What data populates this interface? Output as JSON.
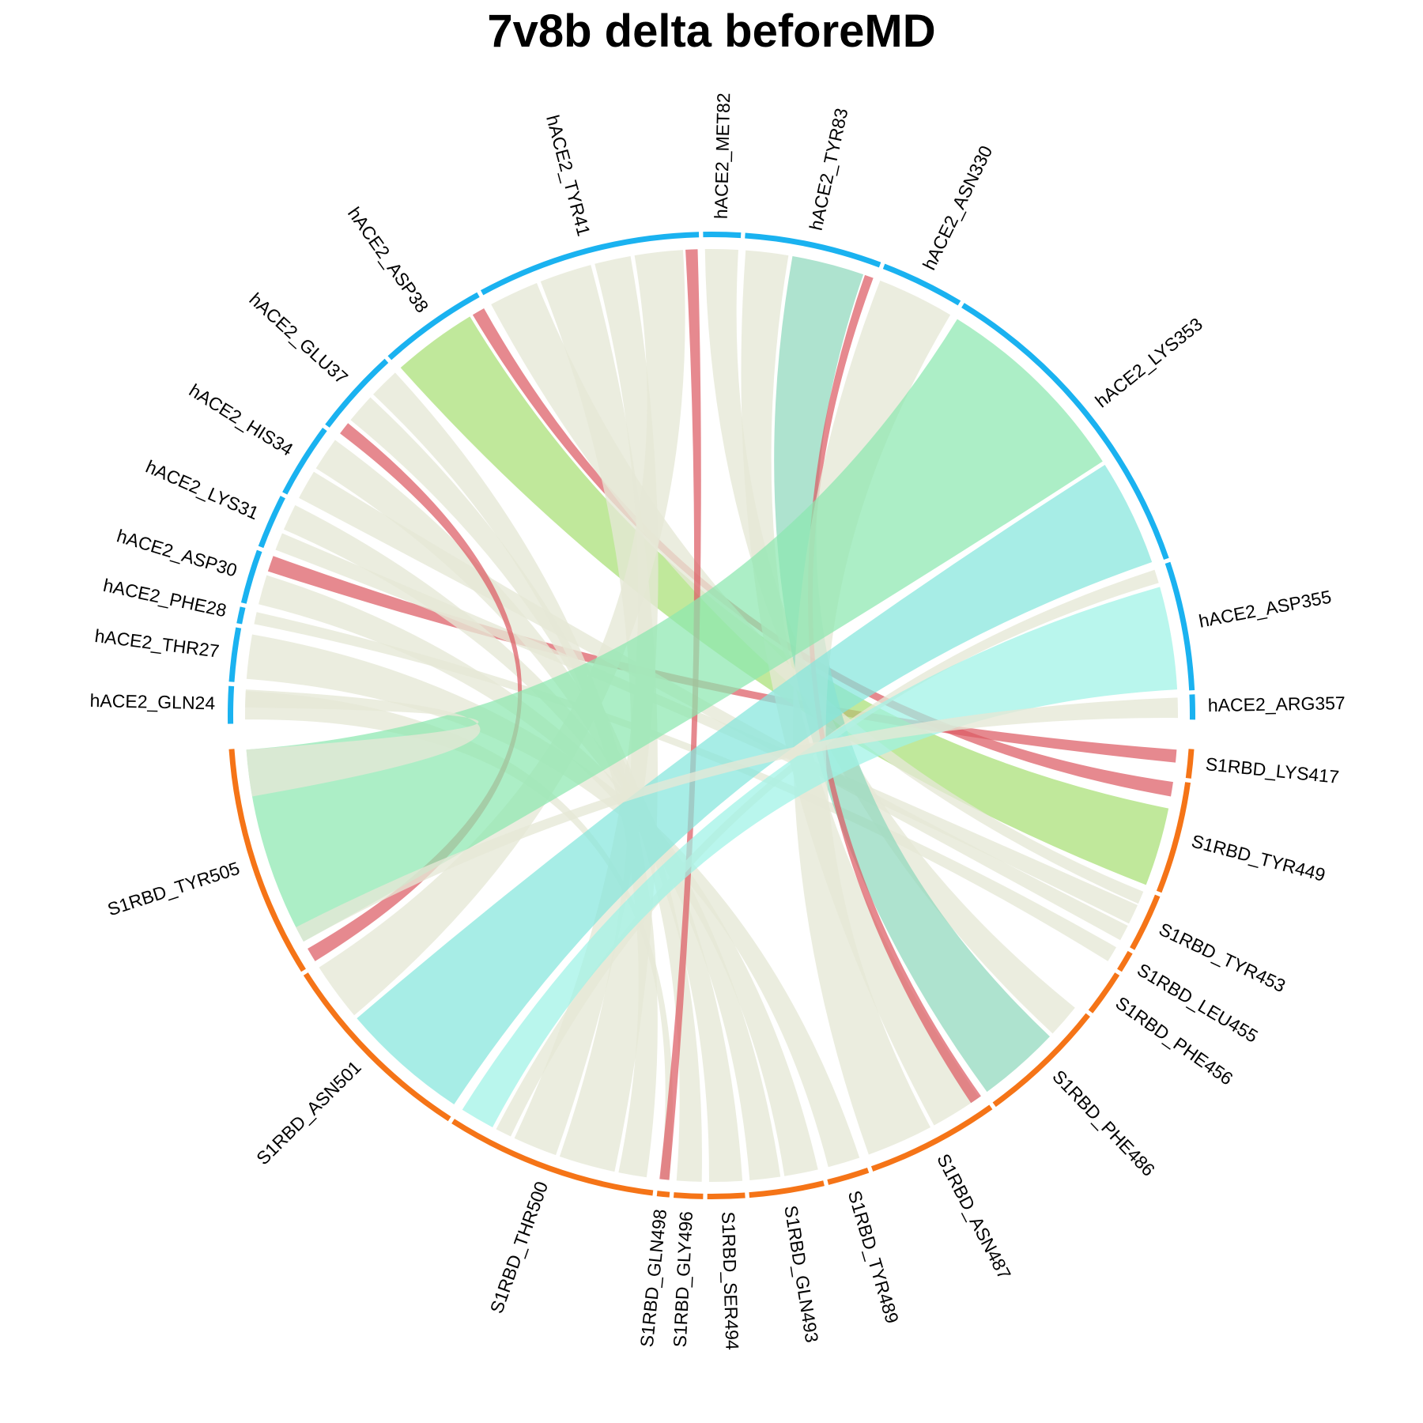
{
  "title": "7v8b delta beforeMD",
  "chart_data": {
    "type": "chord",
    "title": "7v8b delta beforeMD",
    "groups": [
      {
        "name": "hACE2",
        "color": "#1ab2f0"
      },
      {
        "name": "S1RBD",
        "color": "#f57417"
      }
    ],
    "sectors": [
      {
        "label": "hACE2_GLN24",
        "group": "hACE2",
        "start": 269.0,
        "end": 273.5
      },
      {
        "label": "hACE2_THR27",
        "group": "hACE2",
        "start": 274.0,
        "end": 280.5
      },
      {
        "label": "hACE2_PHE28",
        "group": "hACE2",
        "start": 281.0,
        "end": 283.0
      },
      {
        "label": "hACE2_ASP30",
        "group": "hACE2",
        "start": 283.5,
        "end": 290.0
      },
      {
        "label": "hACE2_LYS31",
        "group": "hACE2",
        "start": 290.5,
        "end": 297.0
      },
      {
        "label": "hACE2_HIS34",
        "group": "hACE2",
        "start": 297.5,
        "end": 306.5
      },
      {
        "label": "hACE2_GLU37",
        "group": "hACE2",
        "start": 307.0,
        "end": 317.5
      },
      {
        "label": "hACE2_ASP38",
        "group": "hACE2",
        "start": 318.0,
        "end": 331.0
      },
      {
        "label": "hACE2_TYR41",
        "group": "hACE2",
        "start": 331.5,
        "end": 358.5
      },
      {
        "label": "hACE2_MET82",
        "group": "hACE2",
        "start": 359.0,
        "end": 363.5
      },
      {
        "label": "hACE2_TYR83",
        "group": "hACE2",
        "start": 364.0,
        "end": 380.5
      },
      {
        "label": "hACE2_ASN330",
        "group": "hACE2",
        "start": 381.0,
        "end": 391.0
      },
      {
        "label": "hACE2_LYS353",
        "group": "hACE2",
        "start": 391.5,
        "end": 431.0
      },
      {
        "label": "hACE2_ASP355",
        "group": "hACE2",
        "start": 431.5,
        "end": 447.0
      },
      {
        "label": "hACE2_ARG357",
        "group": "hACE2",
        "start": 447.5,
        "end": 450.5
      },
      {
        "label": "S1RBD_LYS417",
        "group": "S1RBD",
        "start": 94.0,
        "end": 97.5
      },
      {
        "label": "S1RBD_TYR449",
        "group": "S1RBD",
        "start": 98.0,
        "end": 111.5
      },
      {
        "label": "S1RBD_TYR453",
        "group": "S1RBD",
        "start": 112.0,
        "end": 119.0
      },
      {
        "label": "S1RBD_LEU455",
        "group": "S1RBD",
        "start": 119.5,
        "end": 122.0
      },
      {
        "label": "S1RBD_PHE456",
        "group": "S1RBD",
        "start": 122.5,
        "end": 128.0
      },
      {
        "label": "S1RBD_PHE486",
        "group": "S1RBD",
        "start": 128.5,
        "end": 144.0
      },
      {
        "label": "S1RBD_ASN487",
        "group": "S1RBD",
        "start": 144.5,
        "end": 160.5
      },
      {
        "label": "S1RBD_TYR489",
        "group": "S1RBD",
        "start": 161.0,
        "end": 166.0
      },
      {
        "label": "S1RBD_GLN493",
        "group": "S1RBD",
        "start": 166.5,
        "end": 175.5
      },
      {
        "label": "S1RBD_SER494",
        "group": "S1RBD",
        "start": 176.0,
        "end": 180.5
      },
      {
        "label": "S1RBD_GLY496",
        "group": "S1RBD",
        "start": 181.0,
        "end": 184.5
      },
      {
        "label": "S1RBD_GLN498",
        "group": "S1RBD",
        "start": 185.0,
        "end": 186.5
      },
      {
        "label": "S1RBD_THR500",
        "group": "S1RBD",
        "start": 187.0,
        "end": 212.5
      },
      {
        "label": "S1RBD_ASN501",
        "group": "S1RBD",
        "start": 213.0,
        "end": 237.5
      },
      {
        "label": "S1RBD_TYR505",
        "group": "S1RBD",
        "start": 238.0,
        "end": 266.0
      }
    ],
    "links": [
      {
        "from": "hACE2_GLN24",
        "to": "S1RBD_GLN498",
        "color": "#e6e8d6",
        "fromArc": [
          269.5,
          273.0
        ],
        "toArc": [
          185.2,
          186.3
        ]
      },
      {
        "from": "hACE2_THR27",
        "to": "S1RBD_TYR489",
        "color": "#e6e8d6",
        "fromArc": [
          274.5,
          280.0
        ],
        "toArc": [
          161.5,
          165.5
        ]
      },
      {
        "from": "hACE2_PHE28",
        "to": "S1RBD_LEU455",
        "color": "#e6e8d6",
        "fromArc": [
          281.3,
          282.8
        ],
        "toArc": [
          119.8,
          121.8
        ]
      },
      {
        "from": "hACE2_ASP30",
        "to": "S1RBD_LYS417",
        "color": "#dc5c64",
        "fromArc": [
          288.0,
          290.0
        ],
        "toArc": [
          94.2,
          95.8
        ]
      },
      {
        "from": "hACE2_ASP30",
        "to": "S1RBD_GLN493",
        "color": "#e6e8d6",
        "fromArc": [
          283.8,
          287.5
        ],
        "toArc": [
          166.8,
          171.0
        ]
      },
      {
        "from": "hACE2_LYS31",
        "to": "S1RBD_TYR453",
        "color": "#e6e8d6",
        "fromArc": [
          290.8,
          293.0
        ],
        "toArc": [
          114.0,
          116.5
        ]
      },
      {
        "from": "hACE2_LYS31",
        "to": "S1RBD_GLN493",
        "color": "#e6e8d6",
        "fromArc": [
          293.5,
          296.8
        ],
        "toArc": [
          171.5,
          175.3
        ]
      },
      {
        "from": "hACE2_HIS34",
        "to": "S1RBD_TYR453",
        "color": "#e6e8d6",
        "fromArc": [
          297.8,
          301.5
        ],
        "toArc": [
          116.8,
          118.8
        ]
      },
      {
        "from": "hACE2_HIS34",
        "to": "S1RBD_SER494",
        "color": "#e6e8d6",
        "fromArc": [
          302.0,
          306.2
        ],
        "toArc": [
          176.2,
          180.3
        ]
      },
      {
        "from": "hACE2_GLU37",
        "to": "S1RBD_TYR505",
        "color": "#dc5c64",
        "fromArc": [
          307.2,
          308.8
        ],
        "toArc": [
          238.2,
          240.0
        ]
      },
      {
        "from": "hACE2_GLU37",
        "to": "S1RBD_GLY496",
        "color": "#e6e8d6",
        "fromArc": [
          309.3,
          313.0
        ],
        "toArc": [
          181.2,
          184.3
        ]
      },
      {
        "from": "hACE2_GLU37",
        "to": "S1RBD_THR500",
        "color": "#e6e8d6",
        "fromArc": [
          313.5,
          317.3
        ],
        "toArc": [
          188.0,
          191.5
        ]
      },
      {
        "from": "hACE2_ASP38",
        "to": "S1RBD_TYR449",
        "color": "#a7df74",
        "fromArc": [
          318.2,
          328.8
        ],
        "toArc": [
          101.5,
          111.3
        ]
      },
      {
        "from": "hACE2_ASP38",
        "to": "S1RBD_TYR449",
        "color": "#dc5c64",
        "fromArc": [
          329.2,
          330.8
        ],
        "toArc": [
          98.2,
          100.0
        ]
      },
      {
        "from": "hACE2_TYR41",
        "to": "S1RBD_TYR453",
        "color": "#e6e8d6",
        "fromArc": [
          331.8,
          338.0
        ],
        "toArc": [
          112.2,
          113.8
        ]
      },
      {
        "from": "hACE2_TYR41",
        "to": "S1RBD_THR500",
        "color": "#e6e8d6",
        "fromArc": [
          338.5,
          345.0
        ],
        "toArc": [
          192.0,
          199.0
        ]
      },
      {
        "from": "hACE2_TYR41",
        "to": "S1RBD_THR500",
        "color": "#e6e8d6",
        "fromArc": [
          345.5,
          350.0
        ],
        "toArc": [
          199.5,
          205.0
        ]
      },
      {
        "from": "hACE2_TYR41",
        "to": "S1RBD_ASN501",
        "color": "#e6e8d6",
        "fromArc": [
          350.5,
          356.5
        ],
        "toArc": [
          230.0,
          237.3
        ]
      },
      {
        "from": "hACE2_TYR41",
        "to": "S1RBD_GLN498",
        "color": "#dc5c64",
        "fromArc": [
          356.8,
          358.3
        ],
        "toArc": [
          185.2,
          186.4
        ]
      },
      {
        "from": "hACE2_MET82",
        "to": "S1RBD_PHE486",
        "color": "#e6e8d6",
        "fromArc": [
          359.2,
          363.3
        ],
        "toArc": [
          128.8,
          133.0
        ]
      },
      {
        "from": "hACE2_TYR83",
        "to": "S1RBD_ASN487",
        "color": "#e6e8d6",
        "fromArc": [
          364.2,
          369.5
        ],
        "toArc": [
          145.0,
          151.5
        ]
      },
      {
        "from": "hACE2_TYR83",
        "to": "S1RBD_PHE486",
        "color": "#8fd8bd",
        "fromArc": [
          370.0,
          379.0
        ],
        "toArc": [
          133.5,
          143.8
        ]
      },
      {
        "from": "hACE2_TYR83",
        "to": "S1RBD_ASN487",
        "color": "#dc5c64",
        "fromArc": [
          379.2,
          380.3
        ],
        "toArc": [
          144.7,
          146.2
        ]
      },
      {
        "from": "hACE2_ASN330",
        "to": "S1RBD_ASN487",
        "color": "#e6e8d6",
        "fromArc": [
          381.2,
          390.8
        ],
        "toArc": [
          152.0,
          160.3
        ]
      },
      {
        "from": "hACE2_LYS353",
        "to": "S1RBD_TYR505",
        "color": "#8ce8b0",
        "fromArc": [
          391.8,
          417.0
        ],
        "toArc": [
          241.0,
          265.8
        ]
      },
      {
        "from": "hACE2_LYS353",
        "to": "S1RBD_ASN501",
        "color": "#85e6dc",
        "fromArc": [
          417.5,
          430.8
        ],
        "toArc": [
          213.5,
          229.5
        ]
      },
      {
        "from": "hACE2_ASP355",
        "to": "S1RBD_THR500",
        "color": "#e6e8d6",
        "fromArc": [
          431.8,
          433.5
        ],
        "toArc": [
          205.5,
          207.5
        ]
      },
      {
        "from": "hACE2_ASP355",
        "to": "S1RBD_THR500",
        "color": "#9ef2e6",
        "fromArc": [
          434.0,
          446.8
        ],
        "toArc": [
          208.0,
          212.3
        ]
      },
      {
        "from": "hACE2_ARG357",
        "to": "S1RBD_TYR505",
        "color": "#e6e8d6",
        "fromArc": [
          447.8,
          450.3
        ],
        "toArc": [
          241.0,
          243.0
        ]
      },
      {
        "from": "hACE2_GLN24",
        "to": "S1RBD_TYR505",
        "color": "#e6e8d6",
        "fromArc": [
          271.0,
          273.2
        ],
        "toArc": [
          260.0,
          265.8
        ]
      }
    ]
  }
}
